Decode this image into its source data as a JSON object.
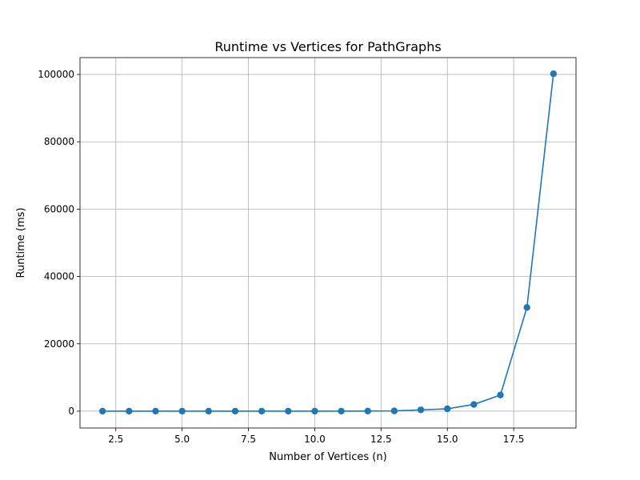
{
  "chart_data": {
    "type": "line",
    "title": "Runtime vs Vertices for PathGraphs",
    "xlabel": "Number of Vertices (n)",
    "ylabel": "Runtime (ms)",
    "xlim": [
      1.15,
      19.85
    ],
    "ylim": [
      -5000,
      105000
    ],
    "xticks": [
      2.5,
      5.0,
      7.5,
      10.0,
      12.5,
      15.0,
      17.5
    ],
    "xtick_labels": [
      "2.5",
      "5.0",
      "7.5",
      "10.0",
      "12.5",
      "15.0",
      "17.5"
    ],
    "yticks": [
      0,
      20000,
      40000,
      60000,
      80000,
      100000
    ],
    "ytick_labels": [
      "0",
      "20000",
      "40000",
      "60000",
      "80000",
      "100000"
    ],
    "grid": true,
    "series": [
      {
        "color": "#1f77b4",
        "marker": "circle",
        "x": [
          2,
          3,
          4,
          5,
          6,
          7,
          8,
          9,
          10,
          11,
          12,
          13,
          14,
          15,
          16,
          17,
          18,
          19
        ],
        "y": [
          0,
          0,
          0,
          0,
          0,
          0,
          0,
          0,
          0,
          10,
          30,
          80,
          400,
          700,
          2000,
          4800,
          30800,
          100200
        ]
      }
    ]
  }
}
